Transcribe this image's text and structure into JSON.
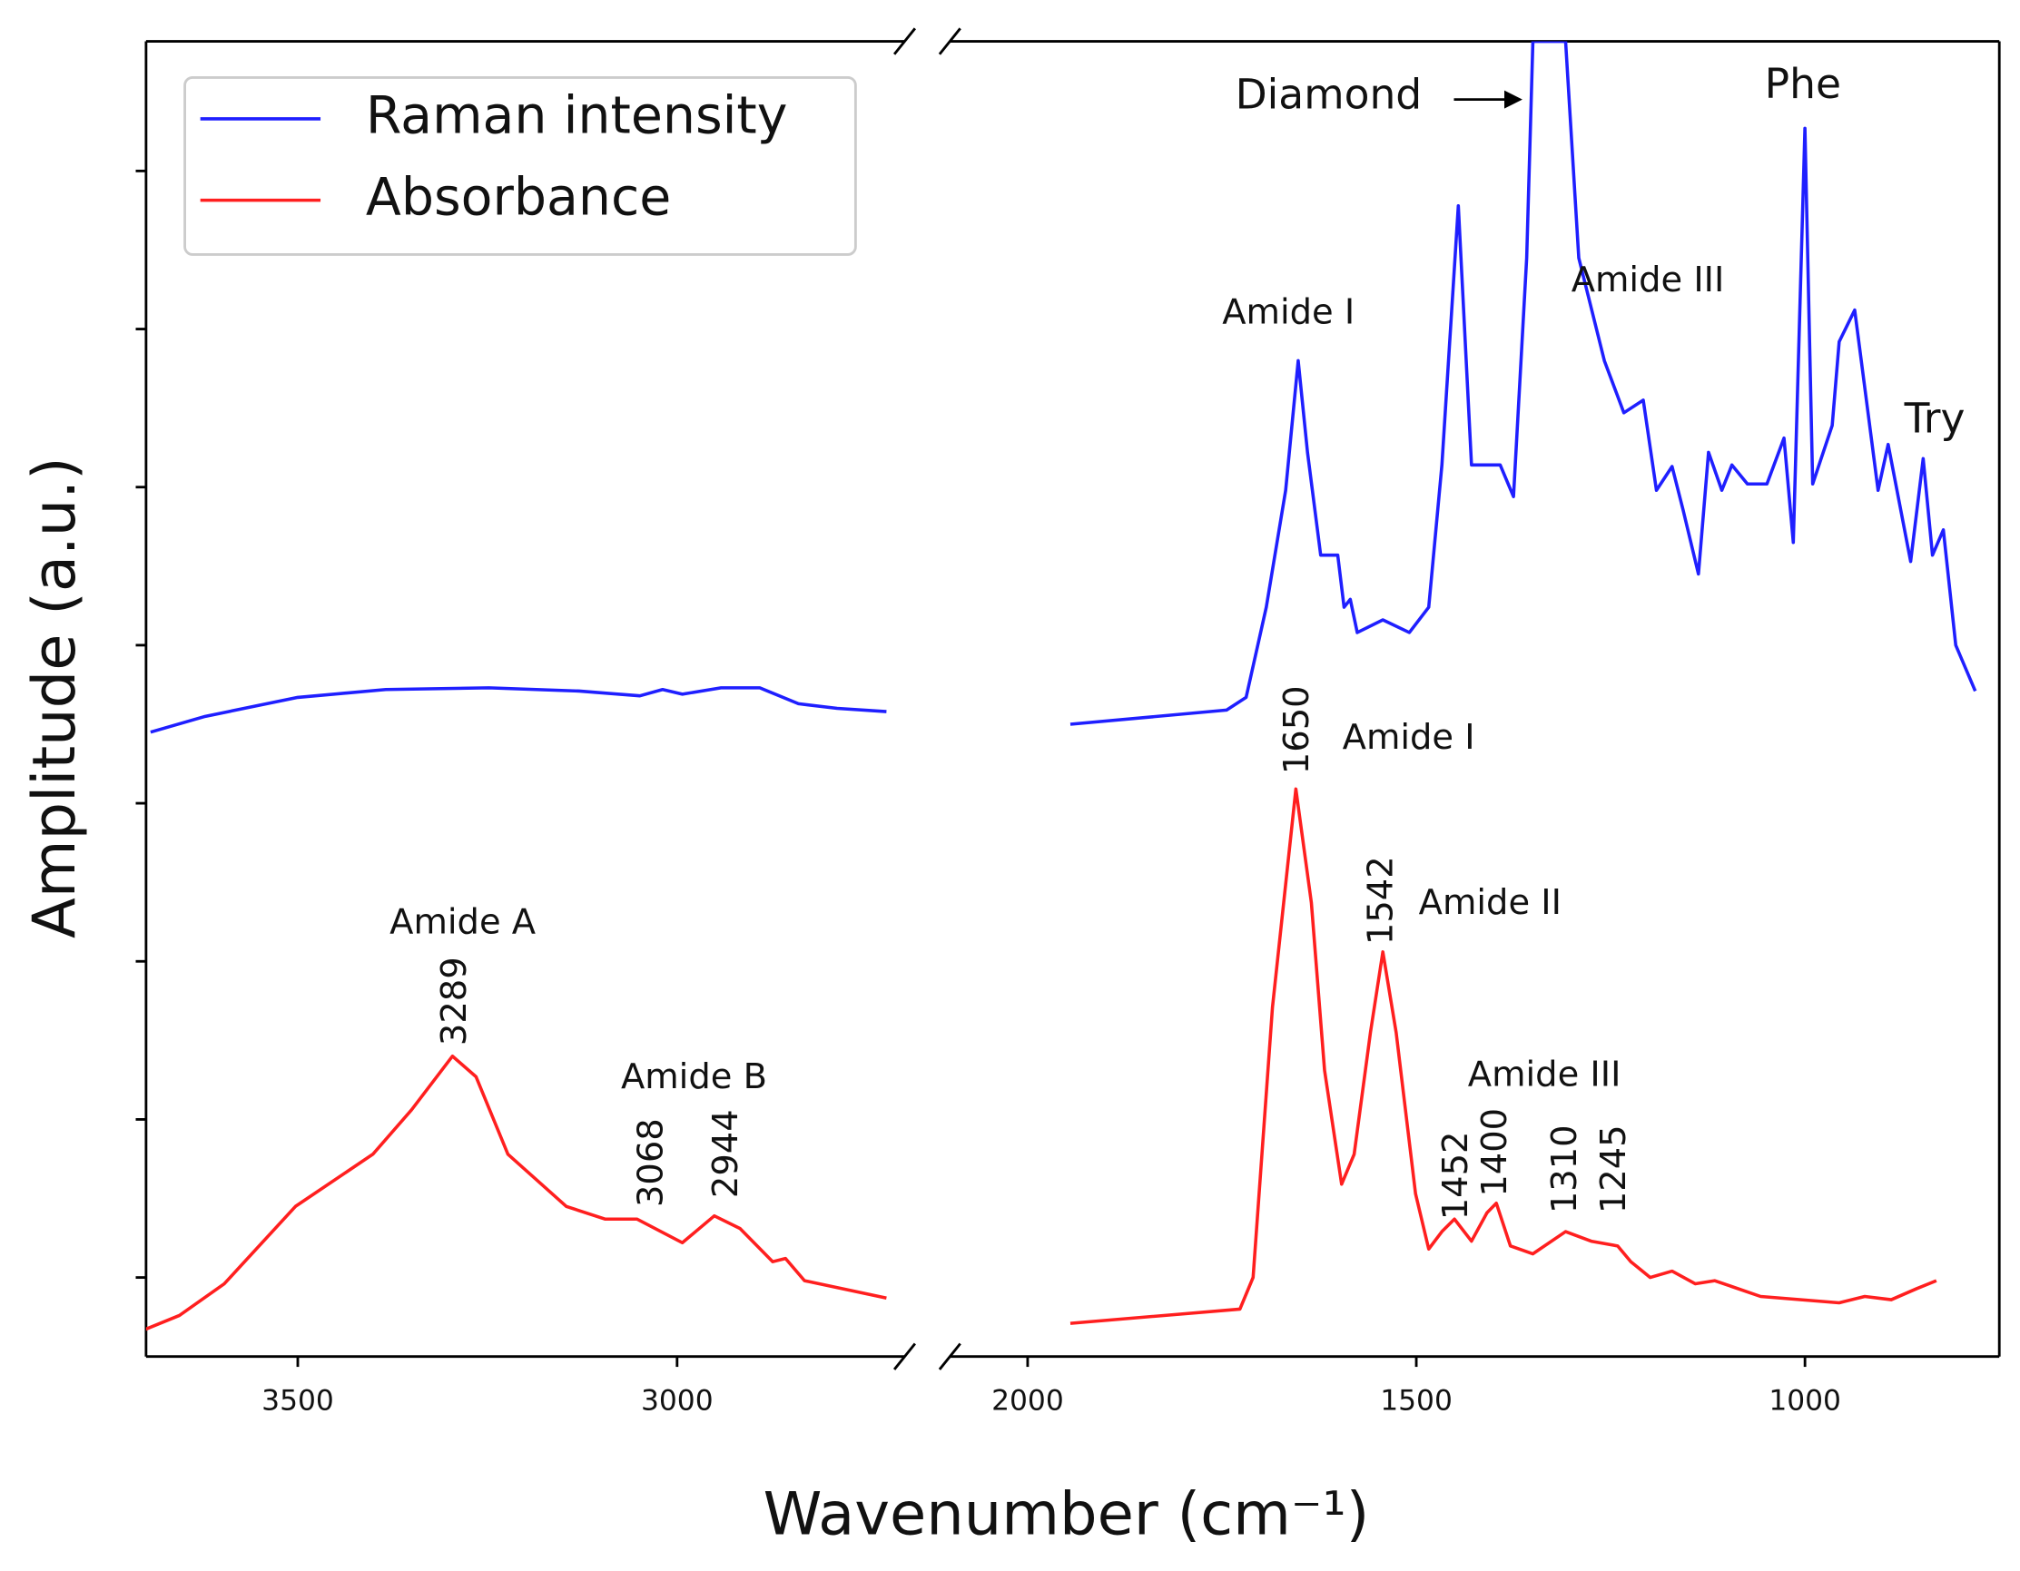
{
  "chart_data": {
    "type": "line",
    "xlabel": "Wavenumber (cm⁻¹)",
    "ylabel": "Amplitude (a.u.)",
    "ylim": [
      0.5,
      8.82
    ],
    "yticks": [
      1,
      2,
      3,
      4,
      5,
      6,
      7,
      8
    ],
    "legend": "upper left",
    "panels": [
      {
        "xlim": [
          3700,
          2700
        ],
        "xticks": [
          3500,
          3000
        ]
      },
      {
        "xlim": [
          2100,
          750
        ],
        "xticks": [
          2000,
          1500,
          1000
        ]
      }
    ],
    "series": [
      {
        "name": "Raman intensity",
        "color": "#1f1fff",
        "parts": [
          {
            "x": [
              3694,
              3622,
              3500,
              3384,
              3248,
              3129,
              3049,
              3019,
              2993,
              2942,
              2891,
              2840,
              2789,
              2724
            ],
            "values": [
              4.45,
              4.55,
              4.67,
              4.72,
              4.73,
              4.71,
              4.68,
              4.72,
              4.69,
              4.73,
              4.73,
              4.63,
              4.6,
              4.58
            ]
          },
          {
            "x": [
              1945,
              1744,
              1719,
              1693,
              1668,
              1652,
              1640,
              1623,
              1601,
              1593,
              1585,
              1576,
              1543,
              1509,
              1484,
              1467,
              1446,
              1429,
              1392,
              1375,
              1358,
              1350,
              1308,
              1291,
              1258,
              1233,
              1208,
              1191,
              1171,
              1157,
              1137,
              1124,
              1107,
              1094,
              1074,
              1049,
              1027,
              1015,
              1000,
              990,
              965,
              956,
              936,
              923,
              906,
              893,
              864,
              848,
              836,
              822,
              806,
              781
            ],
            "values": [
              4.5,
              4.59,
              4.67,
              5.24,
              5.98,
              6.8,
              6.22,
              5.57,
              5.57,
              5.24,
              5.29,
              5.08,
              5.16,
              5.08,
              5.24,
              6.14,
              7.78,
              6.14,
              6.14,
              5.94,
              7.45,
              8.82,
              8.82,
              7.45,
              6.8,
              6.47,
              6.55,
              5.98,
              6.13,
              5.86,
              5.45,
              6.22,
              5.98,
              6.14,
              6.02,
              6.02,
              6.31,
              5.65,
              8.27,
              6.02,
              6.39,
              6.92,
              7.12,
              6.63,
              5.98,
              6.27,
              5.53,
              6.18,
              5.57,
              5.73,
              5.0,
              4.71
            ]
          }
        ]
      },
      {
        "name": "Absorbance",
        "color": "#ff1f1f",
        "parts": [
          {
            "x": [
              3702,
              3656,
              3597,
              3503,
              3401,
              3350,
              3296,
              3265,
              3223,
              3146,
              3095,
              3053,
              2993,
              2951,
              2917,
              2874,
              2857,
              2832,
              2724
            ],
            "values": [
              0.67,
              0.76,
              0.96,
              1.45,
              1.78,
              2.06,
              2.4,
              2.27,
              1.78,
              1.45,
              1.37,
              1.37,
              1.22,
              1.39,
              1.31,
              1.1,
              1.12,
              0.98,
              0.87
            ]
          },
          {
            "x": [
              1945,
              1727,
              1710,
              1685,
              1655,
              1635,
              1618,
              1596,
              1580,
              1559,
              1543,
              1526,
              1501,
              1484,
              1467,
              1451,
              1429,
              1409,
              1397,
              1379,
              1350,
              1308,
              1275,
              1241,
              1224,
              1199,
              1171,
              1141,
              1116,
              1057,
              956,
              923,
              889,
              856,
              831
            ],
            "values": [
              0.71,
              0.8,
              1.0,
              2.71,
              4.09,
              3.37,
              2.31,
              1.59,
              1.78,
              2.55,
              3.06,
              2.55,
              1.53,
              1.18,
              1.29,
              1.37,
              1.23,
              1.41,
              1.47,
              1.2,
              1.15,
              1.29,
              1.23,
              1.2,
              1.1,
              1.0,
              1.04,
              0.96,
              0.98,
              0.88,
              0.84,
              0.88,
              0.86,
              0.93,
              0.98
            ]
          }
        ]
      }
    ],
    "annotations": [
      "Diamond",
      "Phe",
      "Amide I",
      "Amide III",
      "Try",
      "1650",
      "Amide I",
      "1542",
      "Amide II",
      "Amide III",
      "1452",
      "1400",
      "1310",
      "1245",
      "Amide A",
      "3289",
      "Amide B",
      "3068",
      "2944"
    ]
  }
}
